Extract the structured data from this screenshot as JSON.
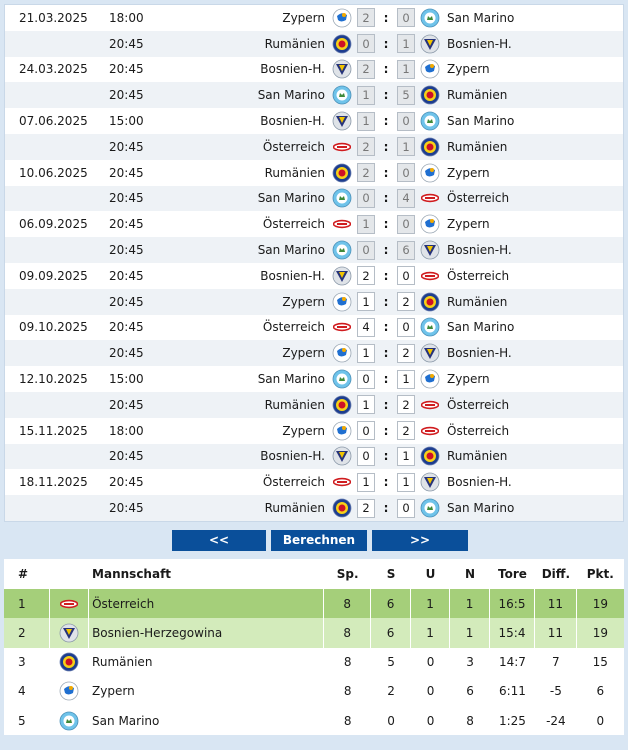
{
  "matches": [
    {
      "date": "21.03.2025",
      "time": "18:00",
      "home": "Zypern",
      "home_flag": "cyprus-flag-icon",
      "hs": "2",
      "as": "0",
      "away": "San Marino",
      "away_flag": "san-marino-flag-icon",
      "played": true
    },
    {
      "date": "",
      "time": "20:45",
      "home": "Rumänien",
      "home_flag": "romania-flag-icon",
      "hs": "0",
      "as": "1",
      "away": "Bosnien-H.",
      "away_flag": "bosnia-flag-icon",
      "played": true
    },
    {
      "date": "24.03.2025",
      "time": "20:45",
      "home": "Bosnien-H.",
      "home_flag": "bosnia-flag-icon",
      "hs": "2",
      "as": "1",
      "away": "Zypern",
      "away_flag": "cyprus-flag-icon",
      "played": true
    },
    {
      "date": "",
      "time": "20:45",
      "home": "San Marino",
      "home_flag": "san-marino-flag-icon",
      "hs": "1",
      "as": "5",
      "away": "Rumänien",
      "away_flag": "romania-flag-icon",
      "played": true
    },
    {
      "date": "07.06.2025",
      "time": "15:00",
      "home": "Bosnien-H.",
      "home_flag": "bosnia-flag-icon",
      "hs": "1",
      "as": "0",
      "away": "San Marino",
      "away_flag": "san-marino-flag-icon",
      "played": true
    },
    {
      "date": "",
      "time": "20:45",
      "home": "Österreich",
      "home_flag": "austria-flag-icon",
      "hs": "2",
      "as": "1",
      "away": "Rumänien",
      "away_flag": "romania-flag-icon",
      "played": true
    },
    {
      "date": "10.06.2025",
      "time": "20:45",
      "home": "Rumänien",
      "home_flag": "romania-flag-icon",
      "hs": "2",
      "as": "0",
      "away": "Zypern",
      "away_flag": "cyprus-flag-icon",
      "played": true
    },
    {
      "date": "",
      "time": "20:45",
      "home": "San Marino",
      "home_flag": "san-marino-flag-icon",
      "hs": "0",
      "as": "4",
      "away": "Österreich",
      "away_flag": "austria-flag-icon",
      "played": true
    },
    {
      "date": "06.09.2025",
      "time": "20:45",
      "home": "Österreich",
      "home_flag": "austria-flag-icon",
      "hs": "1",
      "as": "0",
      "away": "Zypern",
      "away_flag": "cyprus-flag-icon",
      "played": true
    },
    {
      "date": "",
      "time": "20:45",
      "home": "San Marino",
      "home_flag": "san-marino-flag-icon",
      "hs": "0",
      "as": "6",
      "away": "Bosnien-H.",
      "away_flag": "bosnia-flag-icon",
      "played": true
    },
    {
      "date": "09.09.2025",
      "time": "20:45",
      "home": "Bosnien-H.",
      "home_flag": "bosnia-flag-icon",
      "hs": "2",
      "as": "0",
      "away": "Österreich",
      "away_flag": "austria-flag-icon",
      "played": false
    },
    {
      "date": "",
      "time": "20:45",
      "home": "Zypern",
      "home_flag": "cyprus-flag-icon",
      "hs": "1",
      "as": "2",
      "away": "Rumänien",
      "away_flag": "romania-flag-icon",
      "played": false
    },
    {
      "date": "09.10.2025",
      "time": "20:45",
      "home": "Österreich",
      "home_flag": "austria-flag-icon",
      "hs": "4",
      "as": "0",
      "away": "San Marino",
      "away_flag": "san-marino-flag-icon",
      "played": false
    },
    {
      "date": "",
      "time": "20:45",
      "home": "Zypern",
      "home_flag": "cyprus-flag-icon",
      "hs": "1",
      "as": "2",
      "away": "Bosnien-H.",
      "away_flag": "bosnia-flag-icon",
      "played": false
    },
    {
      "date": "12.10.2025",
      "time": "15:00",
      "home": "San Marino",
      "home_flag": "san-marino-flag-icon",
      "hs": "0",
      "as": "1",
      "away": "Zypern",
      "away_flag": "cyprus-flag-icon",
      "played": false
    },
    {
      "date": "",
      "time": "20:45",
      "home": "Rumänien",
      "home_flag": "romania-flag-icon",
      "hs": "1",
      "as": "2",
      "away": "Österreich",
      "away_flag": "austria-flag-icon",
      "played": false
    },
    {
      "date": "15.11.2025",
      "time": "18:00",
      "home": "Zypern",
      "home_flag": "cyprus-flag-icon",
      "hs": "0",
      "as": "2",
      "away": "Österreich",
      "away_flag": "austria-flag-icon",
      "played": false
    },
    {
      "date": "",
      "time": "20:45",
      "home": "Bosnien-H.",
      "home_flag": "bosnia-flag-icon",
      "hs": "0",
      "as": "1",
      "away": "Rumänien",
      "away_flag": "romania-flag-icon",
      "played": false
    },
    {
      "date": "18.11.2025",
      "time": "20:45",
      "home": "Österreich",
      "home_flag": "austria-flag-icon",
      "hs": "1",
      "as": "1",
      "away": "Bosnien-H.",
      "away_flag": "bosnia-flag-icon",
      "played": false
    },
    {
      "date": "",
      "time": "20:45",
      "home": "Rumänien",
      "home_flag": "romania-flag-icon",
      "hs": "2",
      "as": "0",
      "away": "San Marino",
      "away_flag": "san-marino-flag-icon",
      "played": false
    }
  ],
  "buttons": {
    "prev": "<<",
    "calc": "Berechnen",
    "next": ">>"
  },
  "table": {
    "headers": {
      "rank": "#",
      "team": "Mannschaft",
      "sp": "Sp.",
      "s": "S",
      "u": "U",
      "n": "N",
      "tore": "Tore",
      "diff": "Diff.",
      "pkt": "Pkt."
    },
    "rows": [
      {
        "rank": "1",
        "flag": "austria-flag-icon",
        "team": "Österreich",
        "sp": "8",
        "s": "6",
        "u": "1",
        "n": "1",
        "tore": "16:5",
        "diff": "11",
        "pkt": "19",
        "highlight": "g1"
      },
      {
        "rank": "2",
        "flag": "bosnia-flag-icon",
        "team": "Bosnien-Herzegowina",
        "sp": "8",
        "s": "6",
        "u": "1",
        "n": "1",
        "tore": "15:4",
        "diff": "11",
        "pkt": "19",
        "highlight": "g2"
      },
      {
        "rank": "3",
        "flag": "romania-flag-icon",
        "team": "Rumänien",
        "sp": "8",
        "s": "5",
        "u": "0",
        "n": "3",
        "tore": "14:7",
        "diff": "7",
        "pkt": "15",
        "highlight": ""
      },
      {
        "rank": "4",
        "flag": "cyprus-flag-icon",
        "team": "Zypern",
        "sp": "8",
        "s": "2",
        "u": "0",
        "n": "6",
        "tore": "6:11",
        "diff": "-5",
        "pkt": "6",
        "highlight": ""
      },
      {
        "rank": "5",
        "flag": "san-marino-flag-icon",
        "team": "San Marino",
        "sp": "8",
        "s": "0",
        "u": "0",
        "n": "8",
        "tore": "1:25",
        "diff": "-24",
        "pkt": "0",
        "highlight": ""
      }
    ]
  },
  "colors": {
    "button": "#0a4f9a",
    "first_place": "#a5cf7a",
    "second_place": "#d3ebbb",
    "background": "#d9e6f3"
  }
}
